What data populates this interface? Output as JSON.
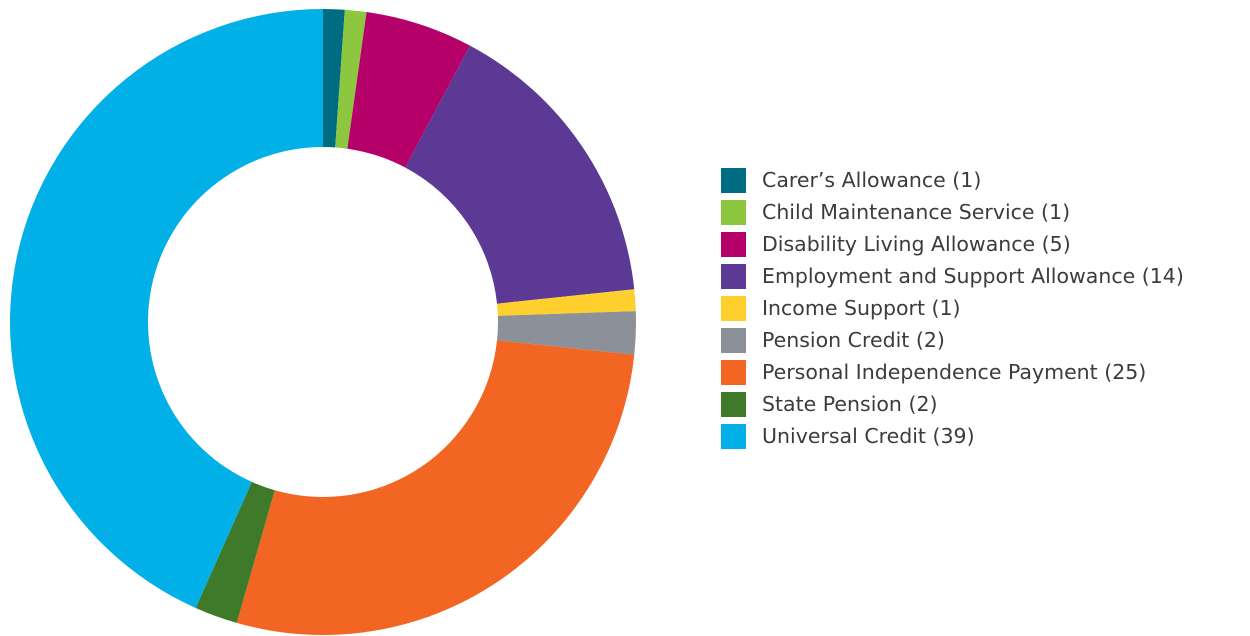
{
  "chart_data": {
    "type": "pie",
    "variant": "donut",
    "title": "",
    "legend_position": "right",
    "series": [
      {
        "label": "Carer’s Allowance (1)",
        "value": 1,
        "color": "#006c81"
      },
      {
        "label": "Child Maintenance Service (1)",
        "value": 1,
        "color": "#8dc63f"
      },
      {
        "label": "Disability Living Allowance (5)",
        "value": 5,
        "color": "#b5006a"
      },
      {
        "label": "Employment and Support Allowance (14)",
        "value": 14,
        "color": "#5c3994"
      },
      {
        "label": "Income Support (1)",
        "value": 1,
        "color": "#ffcf2e"
      },
      {
        "label": "Pension Credit (2)",
        "value": 2,
        "color": "#8c9199"
      },
      {
        "label": "Personal Independence Payment (25)",
        "value": 25,
        "color": "#f26522"
      },
      {
        "label": "State Pension (2)",
        "value": 2,
        "color": "#3f7a2a"
      },
      {
        "label": "Universal Credit (39)",
        "value": 39,
        "color": "#00b0e6"
      }
    ]
  }
}
